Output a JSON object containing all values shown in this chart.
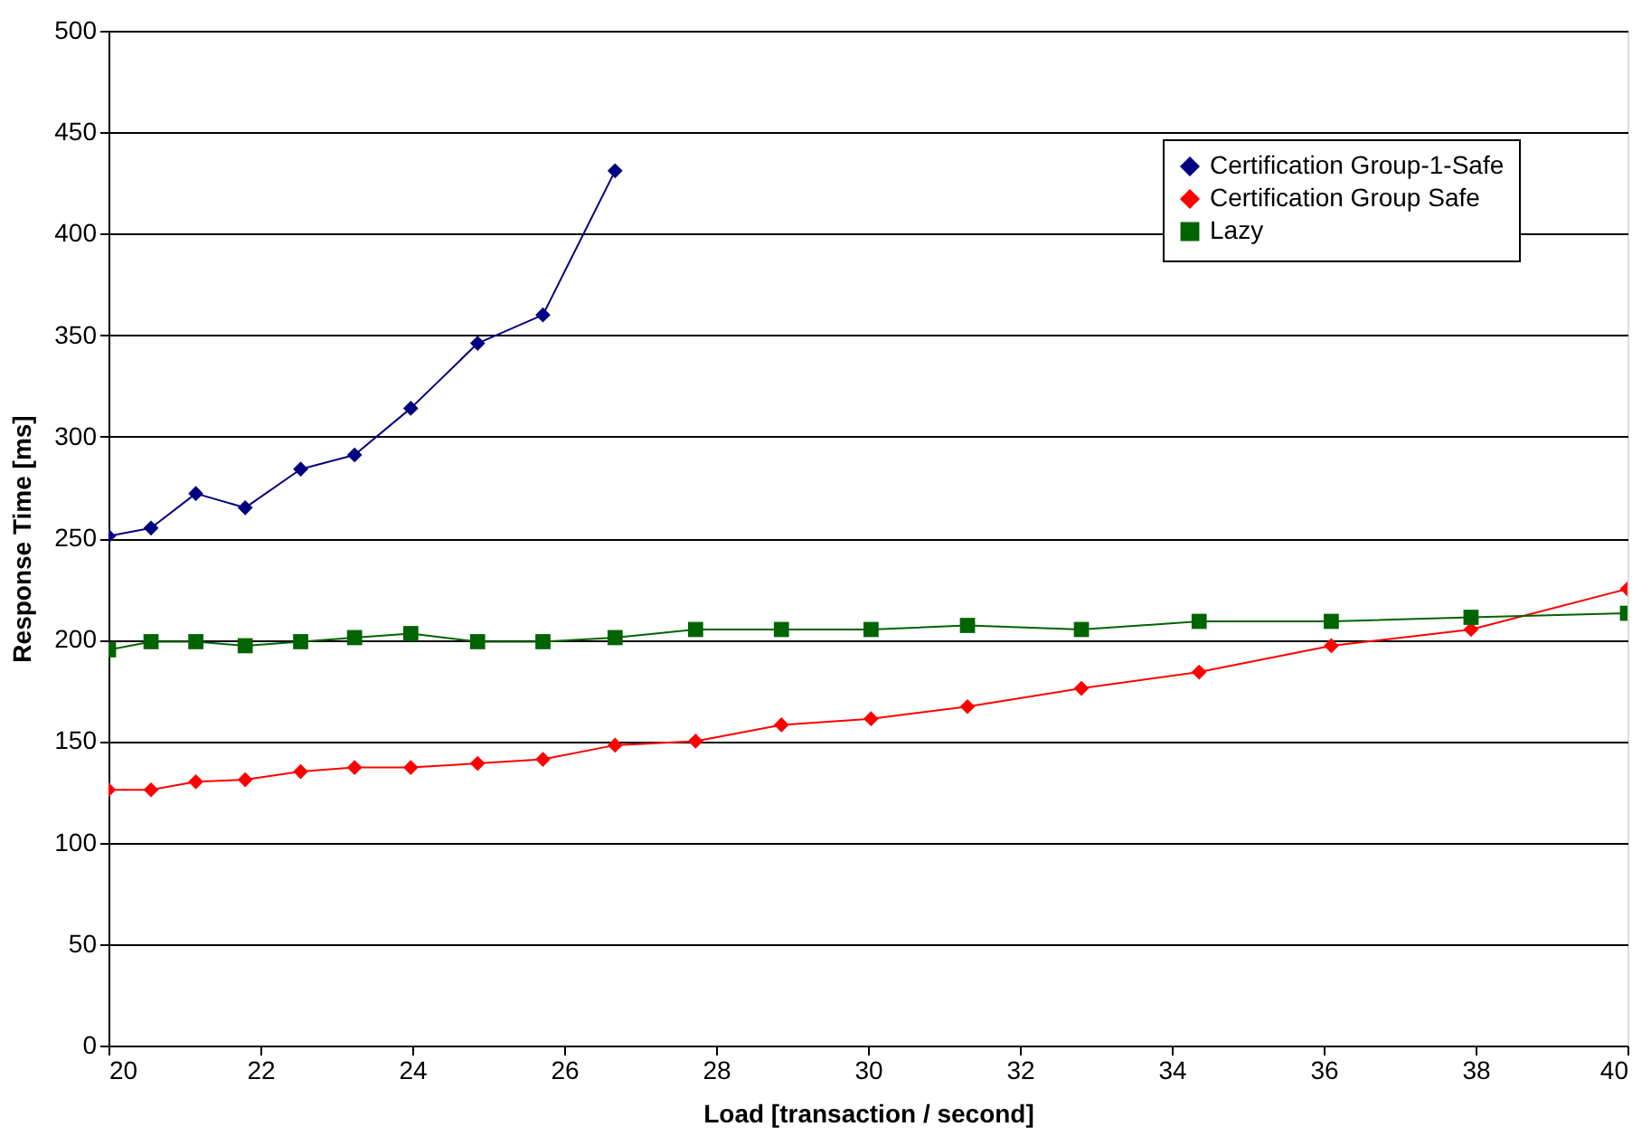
{
  "chart_data": {
    "type": "line",
    "xlabel": "Load [transaction / second]",
    "ylabel": "Response Time [ms]",
    "xlim": [
      20,
      40
    ],
    "xticks": [
      20,
      22,
      24,
      26,
      28,
      30,
      32,
      34,
      36,
      38,
      40
    ],
    "ylim": [
      0,
      500
    ],
    "yticks": [
      0,
      50,
      100,
      150,
      200,
      250,
      300,
      350,
      400,
      450,
      500
    ],
    "grid": "y",
    "legend": "top right",
    "line_style": "solid",
    "series": [
      {
        "name": "Certification Group-1-Safe",
        "color": "#000080",
        "marker": "diamond",
        "x": [
          20,
          20.56,
          21.15,
          21.8,
          22.53,
          23.24,
          23.98,
          24.86,
          25.72,
          26.67
        ],
        "values": [
          251,
          255,
          272,
          265,
          284,
          291,
          314,
          346,
          360,
          431
        ]
      },
      {
        "name": "Certification Group Safe",
        "color": "#ff0000",
        "marker": "diamond",
        "x": [
          20,
          20.56,
          21.15,
          21.8,
          22.53,
          23.24,
          23.98,
          24.86,
          25.72,
          26.67,
          27.73,
          28.86,
          30.04,
          31.31,
          32.81,
          34.36,
          36.1,
          37.94,
          40
        ],
        "values": [
          126,
          126,
          130,
          131,
          135,
          137,
          137,
          139,
          141,
          148,
          150,
          158,
          161,
          167,
          176,
          184,
          197,
          205,
          225
        ]
      },
      {
        "name": "Lazy",
        "color": "#006400",
        "marker": "square",
        "x": [
          20,
          20.56,
          21.15,
          21.8,
          22.53,
          23.24,
          23.98,
          24.86,
          25.72,
          26.67,
          27.73,
          28.86,
          30.04,
          31.31,
          32.81,
          34.36,
          36.1,
          37.94,
          40
        ],
        "values": [
          195,
          199,
          199,
          197,
          199,
          201,
          203,
          199,
          199,
          201,
          205,
          205,
          205,
          207,
          205,
          209,
          209,
          211,
          213
        ]
      }
    ]
  }
}
